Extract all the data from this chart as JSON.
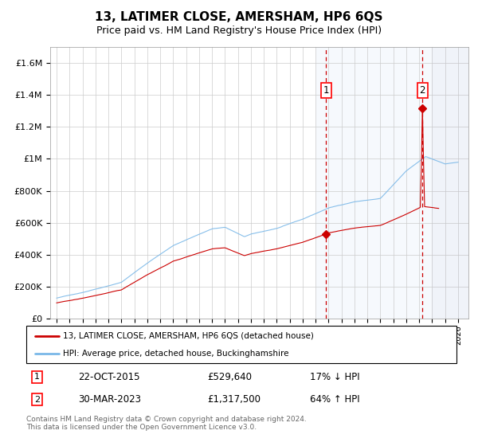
{
  "title": "13, LATIMER CLOSE, AMERSHAM, HP6 6QS",
  "subtitle": "Price paid vs. HM Land Registry's House Price Index (HPI)",
  "title_fontsize": 11,
  "subtitle_fontsize": 9,
  "ylim": [
    0,
    1700000
  ],
  "yticks": [
    0,
    200000,
    400000,
    600000,
    800000,
    1000000,
    1200000,
    1400000,
    1600000
  ],
  "ytick_labels": [
    "£0",
    "£200K",
    "£400K",
    "£600K",
    "£800K",
    "£1M",
    "£1.2M",
    "£1.4M",
    "£1.6M"
  ],
  "hpi_color": "#7ab8e8",
  "price_color": "#cc0000",
  "sale1_year": 2015.8,
  "sale1_price": 529640,
  "sale2_year": 2023.25,
  "sale2_price": 1317500,
  "legend_line1": "13, LATIMER CLOSE, AMERSHAM, HP6 6QS (detached house)",
  "legend_line2": "HPI: Average price, detached house, Buckinghamshire",
  "table_row1_num": "1",
  "table_row1_date": "22-OCT-2015",
  "table_row1_price": "£529,640",
  "table_row1_hpi": "17% ↓ HPI",
  "table_row2_num": "2",
  "table_row2_date": "30-MAR-2023",
  "table_row2_price": "£1,317,500",
  "table_row2_hpi": "64% ↑ HPI",
  "footnote": "Contains HM Land Registry data © Crown copyright and database right 2024.\nThis data is licensed under the Open Government Licence v3.0.",
  "hatch_start_year": 2024.0,
  "blue_bg_start_year": 2015.0,
  "xlim_start": 1994.5,
  "xlim_end": 2026.8,
  "x_year_ticks_start": 1995,
  "x_year_ticks_end": 2026
}
